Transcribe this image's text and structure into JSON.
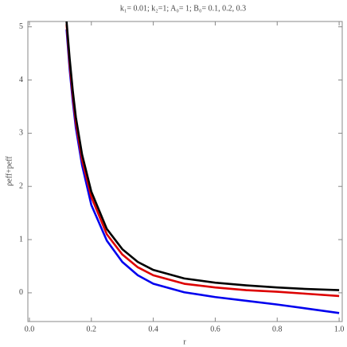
{
  "chart_data": {
    "type": "line",
    "title": "k₁= 0.01; k₂=1; A₀= 1; B₀= 0.1, 0.2, 0.3",
    "x_label": "r",
    "y_label": "ρeff+peff",
    "x": [
      0.12,
      0.13,
      0.14,
      0.15,
      0.17,
      0.2,
      0.25,
      0.3,
      0.35,
      0.4,
      0.5,
      0.6,
      0.7,
      0.8,
      0.9,
      1.0
    ],
    "series": [
      {
        "color": "#0000ee",
        "values": [
          4.95,
          4.2,
          3.6,
          3.1,
          2.4,
          1.65,
          0.98,
          0.58,
          0.33,
          0.17,
          0.01,
          -0.08,
          -0.15,
          -0.22,
          -0.3,
          -0.38
        ]
      },
      {
        "color": "#dd0000",
        "values": [
          5.05,
          4.3,
          3.7,
          3.2,
          2.5,
          1.8,
          1.1,
          0.72,
          0.48,
          0.33,
          0.17,
          0.1,
          0.05,
          0.02,
          -0.02,
          -0.06
        ]
      },
      {
        "color": "#000000",
        "values": [
          5.1,
          4.4,
          3.8,
          3.3,
          2.6,
          1.9,
          1.2,
          0.82,
          0.58,
          0.43,
          0.27,
          0.19,
          0.14,
          0.1,
          0.07,
          0.05
        ]
      }
    ],
    "xlim": [
      -0.005,
      1.01
    ],
    "ylim": [
      -0.54,
      5.1
    ],
    "xticks": [
      {
        "value": 0,
        "label": "0.0"
      },
      {
        "value": 0.2,
        "label": "0.2"
      },
      {
        "value": 0.4,
        "label": "0.4"
      },
      {
        "value": 0.6,
        "label": "0.6"
      },
      {
        "value": 0.8,
        "label": "0.8"
      },
      {
        "value": 1,
        "label": "1.0"
      }
    ],
    "yticks": [
      0,
      1,
      2,
      3,
      4,
      5
    ]
  }
}
